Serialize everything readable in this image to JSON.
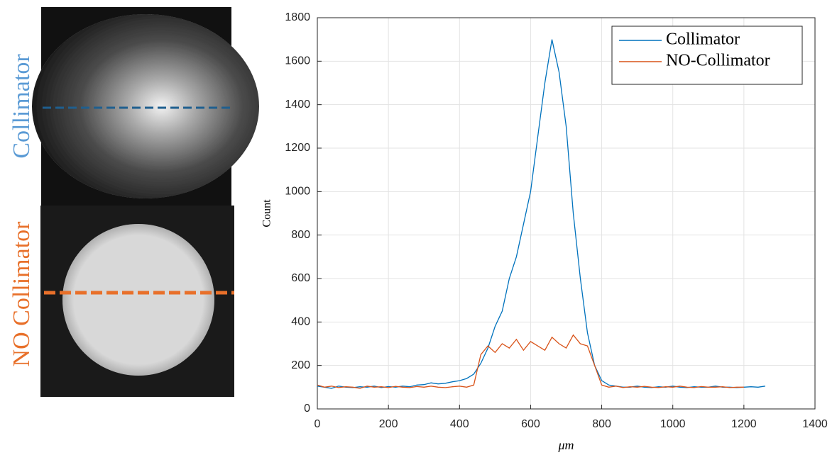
{
  "panels": [
    {
      "label": "Collimator",
      "color": "#5b9bd5"
    },
    {
      "label": "NO Collimator",
      "color": "#e8702a"
    }
  ],
  "chart_data": {
    "type": "line",
    "xlabel": "μm",
    "ylabel": "Count",
    "xlim": [
      0,
      1400
    ],
    "xticks": [
      0,
      200,
      400,
      600,
      800,
      1000,
      1200,
      1400
    ],
    "ylim": [
      0,
      1800
    ],
    "yticks": [
      0,
      200,
      400,
      600,
      800,
      1000,
      1200,
      1400,
      1600,
      1800
    ],
    "grid": true,
    "legend": "upper-right",
    "series": [
      {
        "name": "Collimator",
        "color": "#0072bd",
        "x": [
          0,
          20,
          40,
          60,
          80,
          100,
          120,
          140,
          160,
          180,
          200,
          220,
          240,
          260,
          280,
          300,
          320,
          340,
          360,
          380,
          400,
          420,
          440,
          460,
          480,
          500,
          520,
          540,
          560,
          580,
          600,
          620,
          640,
          660,
          680,
          700,
          720,
          740,
          760,
          780,
          800,
          820,
          840,
          860,
          880,
          900,
          920,
          940,
          960,
          980,
          1000,
          1020,
          1040,
          1060,
          1080,
          1100,
          1120,
          1140,
          1160,
          1180,
          1200,
          1220,
          1240,
          1260
        ],
        "values": [
          105,
          100,
          95,
          105,
          100,
          98,
          102,
          100,
          105,
          98,
          103,
          100,
          105,
          102,
          110,
          112,
          120,
          115,
          118,
          125,
          130,
          140,
          160,
          210,
          280,
          380,
          450,
          600,
          700,
          850,
          1000,
          1250,
          1500,
          1700,
          1550,
          1300,
          900,
          600,
          350,
          200,
          130,
          110,
          105,
          100,
          100,
          105,
          100,
          98,
          102,
          100,
          105,
          100,
          98,
          102,
          100,
          100,
          105,
          100,
          100,
          98,
          100,
          102,
          100,
          105
        ]
      },
      {
        "name": "NO-Collimator",
        "color": "#d95319",
        "x": [
          0,
          20,
          40,
          60,
          80,
          100,
          120,
          140,
          160,
          180,
          200,
          220,
          240,
          260,
          280,
          300,
          320,
          340,
          360,
          380,
          400,
          420,
          440,
          460,
          480,
          500,
          520,
          540,
          560,
          580,
          600,
          620,
          640,
          660,
          680,
          700,
          720,
          740,
          760,
          780,
          800,
          820,
          840,
          860,
          880,
          900,
          920,
          940,
          960,
          980,
          1000,
          1020,
          1040,
          1060,
          1080,
          1100,
          1120,
          1140,
          1160,
          1180,
          1200
        ],
        "values": [
          110,
          100,
          105,
          98,
          102,
          100,
          95,
          105,
          100,
          102,
          98,
          104,
          100,
          98,
          103,
          100,
          105,
          100,
          98,
          102,
          105,
          100,
          110,
          250,
          290,
          260,
          300,
          280,
          320,
          270,
          310,
          290,
          270,
          330,
          300,
          280,
          340,
          300,
          290,
          200,
          110,
          100,
          105,
          98,
          102,
          100,
          104,
          100,
          98,
          102,
          100,
          105,
          100,
          98,
          103,
          100,
          100,
          102,
          98,
          100,
          100
        ]
      }
    ]
  }
}
